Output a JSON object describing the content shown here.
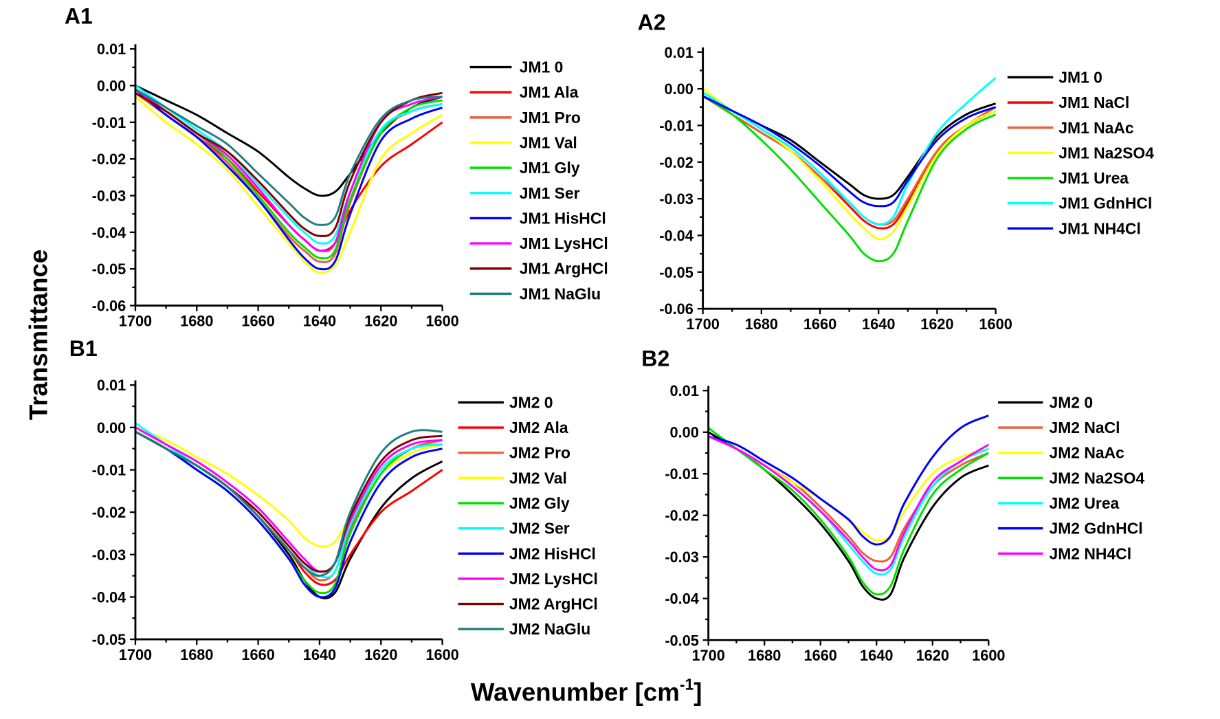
{
  "figure": {
    "ylabel": "Transmittance",
    "xlabel": "Wavenumber [cm",
    "xlabel_sup": "-1",
    "xlabel_end": "]"
  },
  "chart_data": [
    {
      "panel": "A1",
      "type": "line",
      "grid": false,
      "legend": "right",
      "xlim": [
        1700,
        1600
      ],
      "ylim": [
        -0.06,
        0.01
      ],
      "xticks": [
        "1700",
        "1680",
        "1660",
        "1640",
        "1620",
        "1600"
      ],
      "yticks": [
        "0.01",
        "0.00",
        "-0.01",
        "-0.02",
        "-0.03",
        "-0.04",
        "-0.05",
        "-0.06"
      ],
      "x": [
        1700,
        1690,
        1680,
        1670,
        1660,
        1650,
        1645,
        1640,
        1635,
        1630,
        1620,
        1610,
        1600
      ],
      "series": [
        {
          "name": "JM1 0",
          "color": "#000000",
          "values": [
            0.0,
            -0.004,
            -0.008,
            -0.013,
            -0.018,
            -0.025,
            -0.028,
            -0.03,
            -0.029,
            -0.024,
            -0.013,
            -0.006,
            -0.003
          ]
        },
        {
          "name": "JM1 Ala",
          "color": "#ff0000",
          "values": [
            -0.002,
            -0.008,
            -0.014,
            -0.02,
            -0.029,
            -0.038,
            -0.042,
            -0.045,
            -0.043,
            -0.034,
            -0.022,
            -0.016,
            -0.01
          ]
        },
        {
          "name": "JM1 Pro",
          "color": "#e8603c",
          "values": [
            -0.002,
            -0.008,
            -0.014,
            -0.021,
            -0.031,
            -0.041,
            -0.045,
            -0.048,
            -0.046,
            -0.032,
            -0.013,
            -0.007,
            -0.005
          ]
        },
        {
          "name": "JM1 Val",
          "color": "#ffff00",
          "values": [
            -0.003,
            -0.01,
            -0.016,
            -0.023,
            -0.033,
            -0.043,
            -0.048,
            -0.051,
            -0.049,
            -0.04,
            -0.02,
            -0.013,
            -0.008
          ]
        },
        {
          "name": "JM1 Gly",
          "color": "#00e000",
          "values": [
            -0.001,
            -0.007,
            -0.013,
            -0.02,
            -0.03,
            -0.04,
            -0.044,
            -0.047,
            -0.045,
            -0.031,
            -0.013,
            -0.006,
            -0.004
          ]
        },
        {
          "name": "JM1 Ser",
          "color": "#00ffff",
          "values": [
            0.0,
            -0.006,
            -0.012,
            -0.018,
            -0.027,
            -0.036,
            -0.04,
            -0.043,
            -0.041,
            -0.029,
            -0.012,
            -0.007,
            -0.005
          ]
        },
        {
          "name": "JM1 HisHCl",
          "color": "#0000ff",
          "values": [
            -0.001,
            -0.008,
            -0.014,
            -0.022,
            -0.031,
            -0.042,
            -0.047,
            -0.05,
            -0.048,
            -0.035,
            -0.015,
            -0.009,
            -0.006
          ]
        },
        {
          "name": "JM1 LysHCl",
          "color": "#ff00ff",
          "values": [
            -0.001,
            -0.007,
            -0.013,
            -0.019,
            -0.028,
            -0.038,
            -0.042,
            -0.045,
            -0.043,
            -0.029,
            -0.01,
            -0.005,
            -0.003
          ]
        },
        {
          "name": "JM1 ArgHCl",
          "color": "#800000",
          "values": [
            -0.002,
            -0.007,
            -0.013,
            -0.018,
            -0.026,
            -0.035,
            -0.039,
            -0.041,
            -0.039,
            -0.026,
            -0.01,
            -0.004,
            -0.002
          ]
        },
        {
          "name": "JM1 NaGlu",
          "color": "#207f7f",
          "values": [
            -0.001,
            -0.006,
            -0.011,
            -0.016,
            -0.024,
            -0.032,
            -0.036,
            -0.038,
            -0.036,
            -0.024,
            -0.009,
            -0.004,
            -0.003
          ]
        }
      ]
    },
    {
      "panel": "A2",
      "type": "line",
      "grid": false,
      "legend": "right",
      "xlim": [
        1700,
        1600
      ],
      "ylim": [
        -0.06,
        0.01
      ],
      "xticks": [
        "1700",
        "1680",
        "1660",
        "1640",
        "1620",
        "1600"
      ],
      "yticks": [
        "0.01",
        "0.00",
        "-0.01",
        "-0.02",
        "-0.03",
        "-0.04",
        "-0.05",
        "-0.06"
      ],
      "x": [
        1700,
        1690,
        1680,
        1670,
        1660,
        1650,
        1645,
        1640,
        1635,
        1630,
        1620,
        1610,
        1600
      ],
      "series": [
        {
          "name": "JM1 0",
          "color": "#000000",
          "values": [
            -0.002,
            -0.006,
            -0.01,
            -0.014,
            -0.02,
            -0.026,
            -0.029,
            -0.03,
            -0.029,
            -0.024,
            -0.013,
            -0.007,
            -0.004
          ]
        },
        {
          "name": "JM1 NaCl",
          "color": "#ff0000",
          "values": [
            -0.002,
            -0.007,
            -0.012,
            -0.017,
            -0.024,
            -0.032,
            -0.036,
            -0.038,
            -0.037,
            -0.031,
            -0.017,
            -0.01,
            -0.006
          ]
        },
        {
          "name": "JM1 NaAc",
          "color": "#e8603c",
          "values": [
            -0.002,
            -0.007,
            -0.012,
            -0.017,
            -0.024,
            -0.031,
            -0.035,
            -0.037,
            -0.036,
            -0.03,
            -0.017,
            -0.01,
            -0.005
          ]
        },
        {
          "name": "JM1 Na2SO4",
          "color": "#ffff00",
          "values": [
            0.0,
            -0.006,
            -0.011,
            -0.017,
            -0.025,
            -0.034,
            -0.038,
            -0.041,
            -0.039,
            -0.032,
            -0.018,
            -0.01,
            -0.006
          ]
        },
        {
          "name": "JM1 Urea",
          "color": "#00e000",
          "values": [
            -0.002,
            -0.007,
            -0.014,
            -0.022,
            -0.031,
            -0.04,
            -0.045,
            -0.047,
            -0.045,
            -0.036,
            -0.019,
            -0.011,
            -0.007
          ]
        },
        {
          "name": "JM1 GdnHCl",
          "color": "#00ffff",
          "values": [
            -0.001,
            -0.006,
            -0.011,
            -0.016,
            -0.023,
            -0.031,
            -0.035,
            -0.037,
            -0.035,
            -0.026,
            -0.012,
            -0.004,
            0.003
          ]
        },
        {
          "name": "JM1 NH4Cl",
          "color": "#0000ff",
          "values": [
            -0.002,
            -0.006,
            -0.01,
            -0.015,
            -0.021,
            -0.028,
            -0.031,
            -0.032,
            -0.031,
            -0.025,
            -0.014,
            -0.008,
            -0.005
          ]
        }
      ]
    },
    {
      "panel": "B1",
      "type": "line",
      "grid": false,
      "legend": "right",
      "xlim": [
        1700,
        1600
      ],
      "ylim": [
        -0.05,
        0.01
      ],
      "xticks": [
        "1700",
        "1680",
        "1660",
        "1640",
        "1620",
        "1600"
      ],
      "yticks": [
        "0.01",
        "0.00",
        "-0.01",
        "-0.02",
        "-0.03",
        "-0.04",
        "-0.05"
      ],
      "x": [
        1700,
        1690,
        1680,
        1670,
        1660,
        1650,
        1645,
        1640,
        1635,
        1630,
        1620,
        1610,
        1600
      ],
      "series": [
        {
          "name": "JM2 0",
          "color": "#000000",
          "values": [
            -0.001,
            -0.005,
            -0.009,
            -0.014,
            -0.021,
            -0.03,
            -0.036,
            -0.04,
            -0.039,
            -0.031,
            -0.019,
            -0.012,
            -0.008
          ]
        },
        {
          "name": "JM2 Ala",
          "color": "#ff0000",
          "values": [
            -0.001,
            -0.005,
            -0.009,
            -0.014,
            -0.021,
            -0.029,
            -0.034,
            -0.037,
            -0.036,
            -0.03,
            -0.02,
            -0.015,
            -0.01
          ]
        },
        {
          "name": "JM2 Pro",
          "color": "#e8603c",
          "values": [
            -0.001,
            -0.005,
            -0.009,
            -0.014,
            -0.021,
            -0.029,
            -0.033,
            -0.036,
            -0.034,
            -0.024,
            -0.011,
            -0.005,
            -0.003
          ]
        },
        {
          "name": "JM2 Val",
          "color": "#ffff00",
          "values": [
            0.0,
            -0.003,
            -0.007,
            -0.011,
            -0.016,
            -0.022,
            -0.026,
            -0.028,
            -0.027,
            -0.021,
            -0.011,
            -0.006,
            -0.004
          ]
        },
        {
          "name": "JM2 Gly",
          "color": "#00e000",
          "values": [
            -0.001,
            -0.005,
            -0.01,
            -0.015,
            -0.022,
            -0.031,
            -0.036,
            -0.039,
            -0.037,
            -0.025,
            -0.011,
            -0.005,
            -0.004
          ]
        },
        {
          "name": "JM2 Ser",
          "color": "#00ffff",
          "values": [
            0.001,
            -0.004,
            -0.009,
            -0.014,
            -0.02,
            -0.028,
            -0.032,
            -0.035,
            -0.034,
            -0.023,
            -0.01,
            -0.005,
            -0.004
          ]
        },
        {
          "name": "JM2 HisHCl",
          "color": "#0000ff",
          "values": [
            -0.001,
            -0.005,
            -0.01,
            -0.015,
            -0.022,
            -0.031,
            -0.037,
            -0.04,
            -0.038,
            -0.027,
            -0.013,
            -0.007,
            -0.005
          ]
        },
        {
          "name": "JM2 LysHCl",
          "color": "#ff00ff",
          "values": [
            0.0,
            -0.004,
            -0.008,
            -0.013,
            -0.019,
            -0.027,
            -0.031,
            -0.034,
            -0.032,
            -0.022,
            -0.009,
            -0.004,
            -0.003
          ]
        },
        {
          "name": "JM2 ArgHCl",
          "color": "#800000",
          "values": [
            -0.001,
            -0.005,
            -0.009,
            -0.014,
            -0.02,
            -0.028,
            -0.032,
            -0.034,
            -0.032,
            -0.021,
            -0.008,
            -0.003,
            -0.002
          ]
        },
        {
          "name": "JM2 NaGlu",
          "color": "#207f7f",
          "values": [
            -0.001,
            -0.005,
            -0.009,
            -0.014,
            -0.021,
            -0.029,
            -0.033,
            -0.035,
            -0.032,
            -0.02,
            -0.006,
            -0.001,
            -0.001
          ]
        }
      ]
    },
    {
      "panel": "B2",
      "type": "line",
      "grid": false,
      "legend": "right",
      "xlim": [
        1700,
        1600
      ],
      "ylim": [
        -0.05,
        0.01
      ],
      "xticks": [
        "1700",
        "1680",
        "1660",
        "1640",
        "1620",
        "1600"
      ],
      "yticks": [
        "0.01",
        "0.00",
        "-0.01",
        "-0.02",
        "-0.03",
        "-0.04",
        "-0.05"
      ],
      "x": [
        1700,
        1690,
        1680,
        1670,
        1660,
        1650,
        1645,
        1640,
        1635,
        1630,
        1620,
        1610,
        1600
      ],
      "series": [
        {
          "name": "JM2 0",
          "color": "#000000",
          "values": [
            0.0,
            -0.004,
            -0.009,
            -0.015,
            -0.022,
            -0.031,
            -0.037,
            -0.04,
            -0.039,
            -0.03,
            -0.018,
            -0.011,
            -0.008
          ]
        },
        {
          "name": "JM2 NaCl",
          "color": "#e8603c",
          "values": [
            -0.001,
            -0.004,
            -0.008,
            -0.012,
            -0.018,
            -0.025,
            -0.029,
            -0.031,
            -0.03,
            -0.023,
            -0.013,
            -0.008,
            -0.005
          ]
        },
        {
          "name": "JM2 NaAc",
          "color": "#ffff00",
          "values": [
            -0.001,
            -0.004,
            -0.008,
            -0.012,
            -0.016,
            -0.021,
            -0.024,
            -0.026,
            -0.025,
            -0.019,
            -0.01,
            -0.006,
            -0.004
          ]
        },
        {
          "name": "JM2 Na2SO4",
          "color": "#00e000",
          "values": [
            0.001,
            -0.004,
            -0.009,
            -0.014,
            -0.021,
            -0.03,
            -0.036,
            -0.039,
            -0.037,
            -0.028,
            -0.015,
            -0.009,
            -0.005
          ]
        },
        {
          "name": "JM2 Urea",
          "color": "#00ffff",
          "values": [
            -0.001,
            -0.004,
            -0.008,
            -0.013,
            -0.019,
            -0.027,
            -0.031,
            -0.034,
            -0.033,
            -0.025,
            -0.013,
            -0.007,
            -0.004
          ]
        },
        {
          "name": "JM2 GdnHCl",
          "color": "#0000ff",
          "values": [
            -0.001,
            -0.003,
            -0.007,
            -0.011,
            -0.016,
            -0.021,
            -0.025,
            -0.027,
            -0.025,
            -0.017,
            -0.006,
            0.001,
            0.004
          ]
        },
        {
          "name": "JM2 NH4Cl",
          "color": "#ff00ff",
          "values": [
            -0.001,
            -0.004,
            -0.008,
            -0.013,
            -0.019,
            -0.026,
            -0.03,
            -0.033,
            -0.032,
            -0.024,
            -0.012,
            -0.007,
            -0.003
          ]
        }
      ]
    }
  ]
}
